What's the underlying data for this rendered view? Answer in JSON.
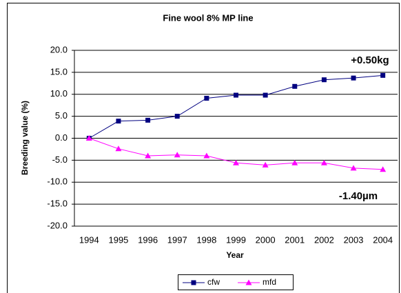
{
  "chart_data": {
    "type": "line",
    "title": "Fine wool 8% MP line",
    "categories": [
      "1994",
      "1995",
      "1996",
      "1997",
      "1998",
      "1999",
      "2000",
      "2001",
      "2002",
      "2003",
      "2004"
    ],
    "series": [
      {
        "name": "cfw",
        "color": "#000080",
        "marker": "square",
        "values": [
          0,
          3.9,
          4.1,
          5.0,
          9.1,
          9.8,
          9.8,
          11.8,
          13.3,
          13.7,
          14.3
        ]
      },
      {
        "name": "mfd",
        "color": "#ff00ff",
        "marker": "triangle",
        "values": [
          0,
          -2.4,
          -4.0,
          -3.8,
          -4.0,
          -5.6,
          -6.1,
          -5.6,
          -5.6,
          -6.8,
          -7.1
        ]
      }
    ],
    "ylim": [
      -20,
      20
    ],
    "yticks": [
      {
        "value": -20,
        "label": "-20.0"
      },
      {
        "value": -15,
        "label": "-15.0"
      },
      {
        "value": -10,
        "label": "-10.0"
      },
      {
        "value": -5,
        "label": "-5.0"
      },
      {
        "value": 0,
        "label": "0.0"
      },
      {
        "value": 5,
        "label": "5.0"
      },
      {
        "value": 10,
        "label": "10.0"
      },
      {
        "value": 15,
        "label": "15.0"
      },
      {
        "value": 20,
        "label": "20.0"
      }
    ],
    "ylabel": "Breeding value (%)",
    "xlabel": "Year",
    "grid": true,
    "legend": "bottom",
    "annotations": [
      "+0.50kg",
      "-1.40µm"
    ]
  }
}
